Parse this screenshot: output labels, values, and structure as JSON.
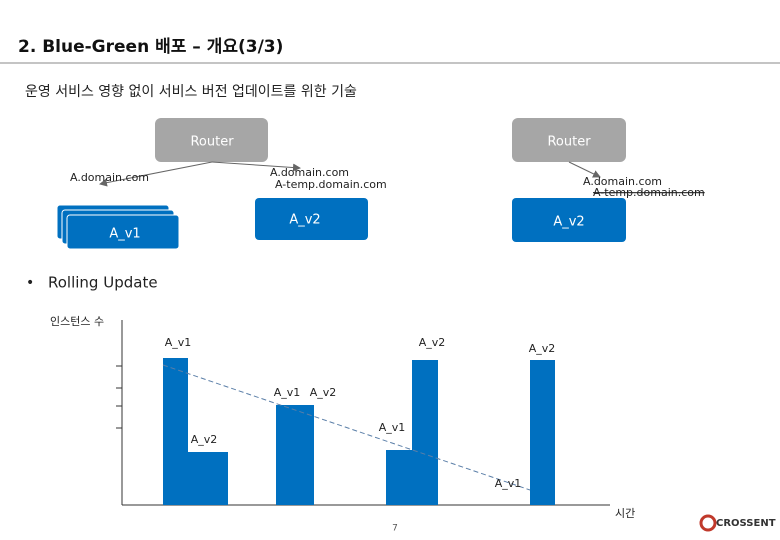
{
  "header": {
    "title": "2. Blue-Green 배포 – 개요(3/3)",
    "subtitle": "운영 서비스 영향 없이 서비스 버전 업데이트를 위한 기술"
  },
  "blue_green": {
    "left": {
      "router": "Router",
      "old_domain": "A.domain.com",
      "new_domain": "A.domain.com",
      "new_temp_domain": "A-temp.domain.com",
      "old_app": "A_v1",
      "new_app": "A_v2"
    },
    "right": {
      "router": "Router",
      "domain": "A.domain.com",
      "temp_domain": "A-temp.domain.com",
      "app": "A_v2"
    }
  },
  "rolling_update": {
    "bullet": "Rolling Update",
    "y_label": "인스턴스 수",
    "x_label": "시간",
    "labels": [
      "A_v1",
      "A_v2",
      "A_v2",
      "A_v1",
      "A_v2",
      "A_v2",
      "A_v1",
      "A_v1"
    ]
  },
  "footer": {
    "page": "7",
    "logo": "CROSSENT"
  }
}
